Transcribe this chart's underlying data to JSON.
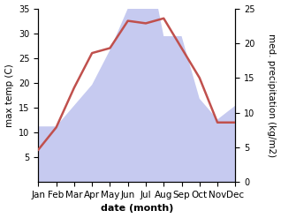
{
  "months": [
    "Jan",
    "Feb",
    "Mar",
    "Apr",
    "May",
    "Jun",
    "Jul",
    "Aug",
    "Sep",
    "Oct",
    "Nov",
    "Dec"
  ],
  "temp": [
    6.5,
    11.0,
    19.0,
    26.0,
    27.0,
    32.5,
    32.0,
    33.0,
    27.0,
    21.0,
    12.0,
    12.0
  ],
  "precip": [
    8,
    8,
    11,
    14,
    19,
    25,
    34,
    21,
    21,
    12,
    9,
    11
  ],
  "temp_color": "#c0504d",
  "precip_color": "#c6caf0",
  "temp_ylim": [
    0,
    35
  ],
  "precip_ylim": [
    0,
    25
  ],
  "temp_yticks": [
    5,
    10,
    15,
    20,
    25,
    30,
    35
  ],
  "precip_yticks": [
    0,
    5,
    10,
    15,
    20,
    25
  ],
  "ylabel_left": "max temp (C)",
  "ylabel_right": "med. precipitation (kg/m2)",
  "xlabel": "date (month)",
  "line_width": 1.8,
  "label_fontsize": 7.5,
  "xlabel_fontsize": 8,
  "ylabel_fontsize": 7.5,
  "tick_fontsize": 7
}
